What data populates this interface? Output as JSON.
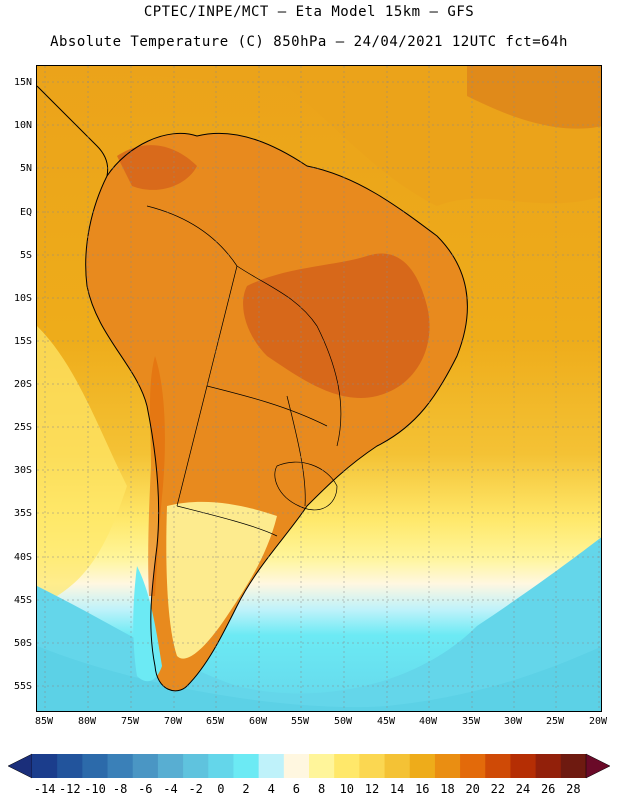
{
  "header": {
    "line1": "CPTEC/INPE/MCT –  Eta Model 15km – GFS",
    "line2": "Absolute Temperature (C) 850hPa – 24/04/2021 12UTC fct=64h"
  },
  "axes": {
    "lat_labels": [
      "15N",
      "10N",
      "5N",
      "EQ",
      "5S",
      "10S",
      "15S",
      "20S",
      "25S",
      "30S",
      "35S",
      "40S",
      "45S",
      "50S",
      "55S"
    ],
    "lon_labels": [
      "85W",
      "80W",
      "75W",
      "70W",
      "65W",
      "60W",
      "55W",
      "50W",
      "45W",
      "40W",
      "35W",
      "30W",
      "25W",
      "20W"
    ]
  },
  "colorbar": {
    "labels": [
      "-14",
      "-12",
      "-10",
      "-8",
      "-6",
      "-4",
      "-2",
      "0",
      "2",
      "4",
      "6",
      "8",
      "10",
      "12",
      "14",
      "16",
      "18",
      "20",
      "22",
      "24",
      "26",
      "28"
    ],
    "colors": [
      "#1b3d8c",
      "#22549c",
      "#2c6aaa",
      "#3a80b8",
      "#4a96c4",
      "#58aed2",
      "#5fc3de",
      "#64d6ea",
      "#6ceaf4",
      "#bff2fa",
      "#fff7e0",
      "#fff59a",
      "#ffe86a",
      "#fbd751",
      "#f4c235",
      "#eeac1a",
      "#ea8e12",
      "#e36a0a",
      "#cf4a06",
      "#b52e04",
      "#92200a",
      "#6e1a10"
    ],
    "left_arrow_color": "#1a2e7a",
    "right_arrow_color": "#6a0a28"
  },
  "map": {
    "ocean_north_color": "#eba31a",
    "land_warm_color": "#e88a1e",
    "hot_core_color": "#d4621a"
  }
}
